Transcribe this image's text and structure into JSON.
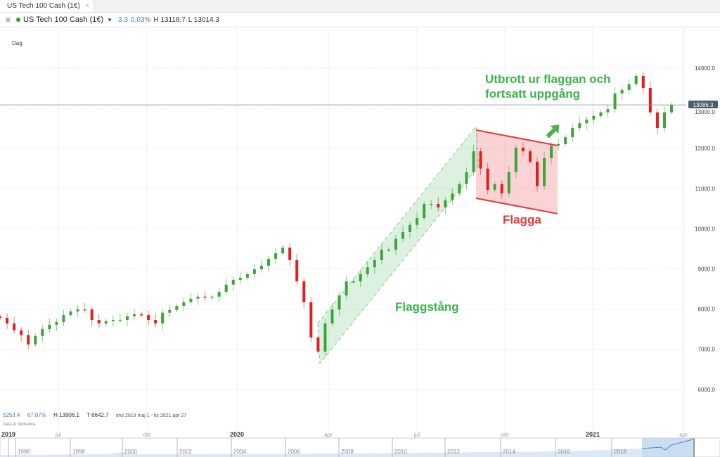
{
  "tab": {
    "title": "US Tech 100 Cash (1€)",
    "close": "×"
  },
  "header": {
    "menu_icon": "hamburger-icon",
    "instrument": "US Tech 100 Cash (1€)",
    "status_color": "#2ca02c",
    "change": "3.3",
    "change_pct": "0.03%",
    "high": "H 13118.7",
    "low": "L 13014.3"
  },
  "timeframe": "Dag",
  "footer": {
    "change": "5253.4",
    "change_pct": "67.07%",
    "high": "H 13906.1",
    "low": "T 6642.7",
    "period": "ons 2019 maj 1 - tis 2021 apr 27",
    "disclaimer": "Data är indikativa"
  },
  "navigator": {
    "years": [
      "1996",
      "1998",
      "2000",
      "2002",
      "2004",
      "2006",
      "2008",
      "2010",
      "2012",
      "2014",
      "2016",
      "2018"
    ]
  },
  "annotations": {
    "breakout_line1": "Utbrott ur flaggan och",
    "breakout_line2": "fortsatt uppgång",
    "flag": "Flagga",
    "pole": "Flaggstång",
    "pole_color": "#3cb44b",
    "flag_color": "#e8383d"
  },
  "chart_data": {
    "type": "candlestick",
    "interval": "weekly (approx.)",
    "period": "2019-05-01 to 2021-04-27",
    "x_tick_labels": [
      "2019",
      "jul",
      "okt",
      "2020",
      "apr",
      "jul",
      "okt",
      "2021",
      "apr"
    ],
    "y_ticks": [
      6000,
      7000,
      8000,
      9000,
      10000,
      11000,
      12000,
      13000,
      14000
    ],
    "y_tick_labels": [
      "6000.0",
      "7000.0",
      "8000.0",
      "9000.0",
      "10000.0",
      "11000.0",
      "12000.0",
      "13000.0",
      "14000.0"
    ],
    "ylim": [
      5600,
      14800
    ],
    "last_price": 13086.3,
    "last_price_label": "13086.3",
    "up_color": "#3aa63a",
    "down_color": "#e02020",
    "closes": [
      7780,
      7640,
      7470,
      7350,
      7120,
      7330,
      7500,
      7610,
      7680,
      7850,
      7940,
      7990,
      7990,
      7730,
      7640,
      7700,
      7730,
      7730,
      7820,
      7870,
      7850,
      7730,
      7640,
      7910,
      7980,
      8080,
      8170,
      8260,
      8310,
      8290,
      8310,
      8430,
      8610,
      8730,
      8780,
      8870,
      8990,
      9080,
      9250,
      9390,
      9530,
      9220,
      8690,
      8170,
      7290,
      6940,
      7640,
      7990,
      8340,
      8690,
      8690,
      8870,
      9040,
      9220,
      9480,
      9480,
      9750,
      9920,
      10100,
      10270,
      10620,
      10620,
      10530,
      10710,
      10880,
      11110,
      11410,
      11930,
      11500,
      10970,
      11110,
      10880,
      11410,
      12020,
      11930,
      11670,
      11060,
      11760,
      12070,
      12110,
      12280,
      12510,
      12630,
      12720,
      12810,
      12900,
      12980,
      13370,
      13460,
      13600,
      13810,
      13510,
      12900,
      12510,
      12900,
      13086.3
    ]
  }
}
